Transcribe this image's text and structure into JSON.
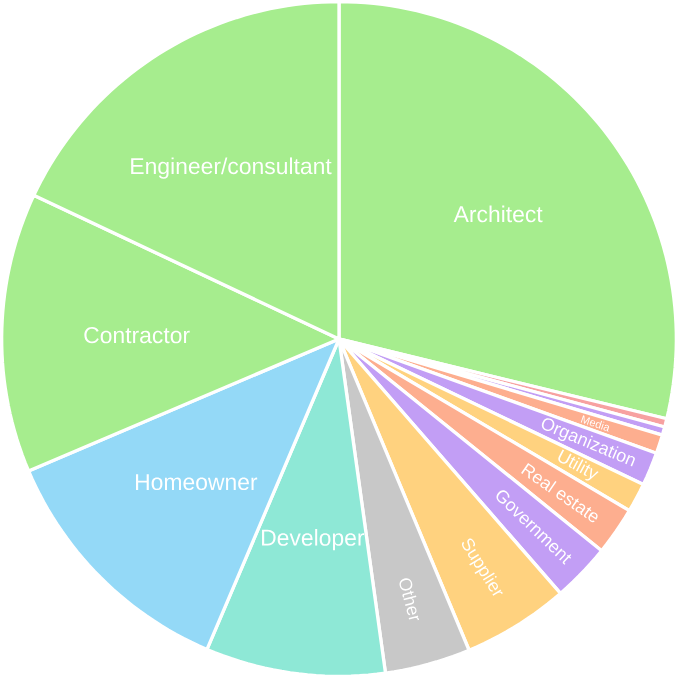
{
  "chart_data": {
    "type": "pie",
    "categories": [
      "Architect",
      null,
      null,
      "Media",
      "Organization",
      "Utility",
      "Real estate",
      "Government",
      "Supplier",
      "Other",
      "Developer",
      "Homeowner",
      "Contractor",
      "Engineer/consultant"
    ],
    "values": [
      28.8,
      0.4,
      0.4,
      0.9,
      1.6,
      1.4,
      2.3,
      2.8,
      5.1,
      4.1,
      8.6,
      12.2,
      13.4,
      18
    ],
    "colors": [
      "#a6ed8e",
      "#f7a1a1",
      "#c29ef5",
      "#fdae8f",
      "#c29ef5",
      "#ffd27f",
      "#fdae8f",
      "#c29ef5",
      "#ffd27f",
      "#c8c8c8",
      "#8ee8d6",
      "#94d9f7",
      "#a6ed8e",
      "#a6ed8e"
    ]
  }
}
